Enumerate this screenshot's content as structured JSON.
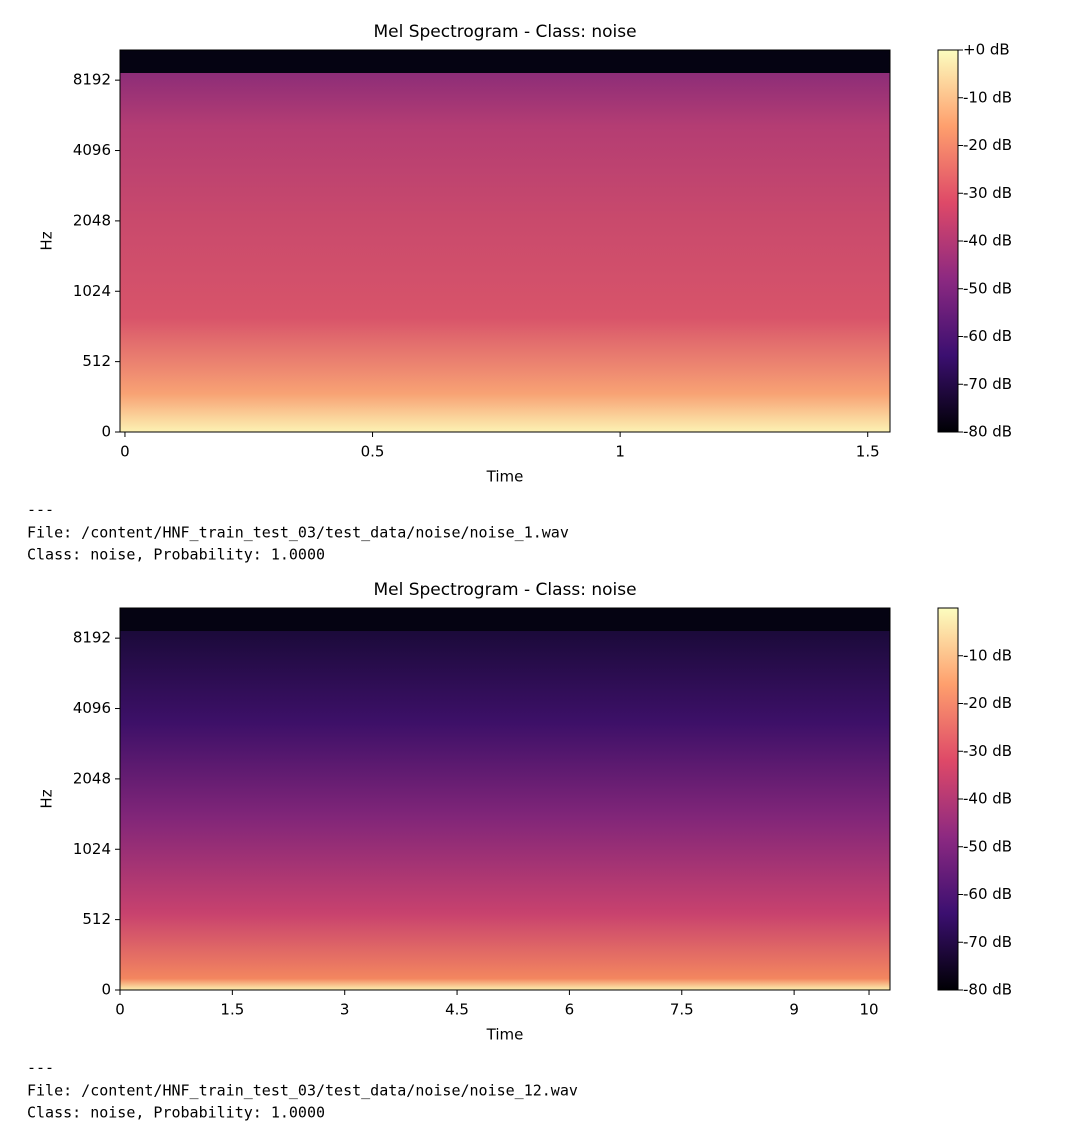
{
  "chart_data": [
    {
      "type": "spectrogram",
      "title": "Mel Spectrogram - Class: noise",
      "xlabel": "Time",
      "ylabel": "Hz",
      "xlim": [
        -0.01,
        1.545
      ],
      "xticks": [
        0,
        0.5,
        1,
        1.5
      ],
      "ylim": [
        0,
        11025
      ],
      "yscale": "symlog",
      "yticks": [
        0,
        512,
        1024,
        2048,
        4096,
        8192
      ],
      "colormap": "magma",
      "clim": [
        -80,
        0
      ],
      "cticks": [
        {
          "value": 0,
          "label": "+0 dB"
        },
        {
          "value": -10,
          "label": "-10 dB"
        },
        {
          "value": -20,
          "label": "-20 dB"
        },
        {
          "value": -30,
          "label": "-30 dB"
        },
        {
          "value": -40,
          "label": "-40 dB"
        },
        {
          "value": -50,
          "label": "-50 dB"
        },
        {
          "value": -60,
          "label": "-60 dB"
        },
        {
          "value": -70,
          "label": "-70 dB"
        },
        {
          "value": -80,
          "label": "-80 dB"
        }
      ]
    },
    {
      "type": "spectrogram",
      "title": "Mel Spectrogram - Class: noise",
      "xlabel": "Time",
      "ylabel": "Hz",
      "xlim": [
        0,
        10.28
      ],
      "xticks": [
        0,
        1.5,
        3,
        4.5,
        6,
        7.5,
        9,
        10
      ],
      "ylim": [
        0,
        11025
      ],
      "yscale": "symlog",
      "yticks": [
        0,
        512,
        1024,
        2048,
        4096,
        8192
      ],
      "colormap": "magma",
      "clim": [
        -80,
        0
      ],
      "cticks": [
        {
          "value": -10,
          "label": "-10 dB"
        },
        {
          "value": -20,
          "label": "-20 dB"
        },
        {
          "value": -30,
          "label": "-30 dB"
        },
        {
          "value": -40,
          "label": "-40 dB"
        },
        {
          "value": -50,
          "label": "-50 dB"
        },
        {
          "value": -60,
          "label": "-60 dB"
        },
        {
          "value": -70,
          "label": "-70 dB"
        },
        {
          "value": -80,
          "label": "-80 dB"
        }
      ]
    }
  ],
  "outputs": [
    {
      "separator": "---",
      "file": "File: /content/HNF_train_test_03/test_data/noise/noise_1.wav",
      "result": "Class: noise, Probability: 1.0000"
    },
    {
      "separator": "---",
      "file": "File: /content/HNF_train_test_03/test_data/noise/noise_12.wav",
      "result": "Class: noise, Probability: 1.0000"
    }
  ]
}
